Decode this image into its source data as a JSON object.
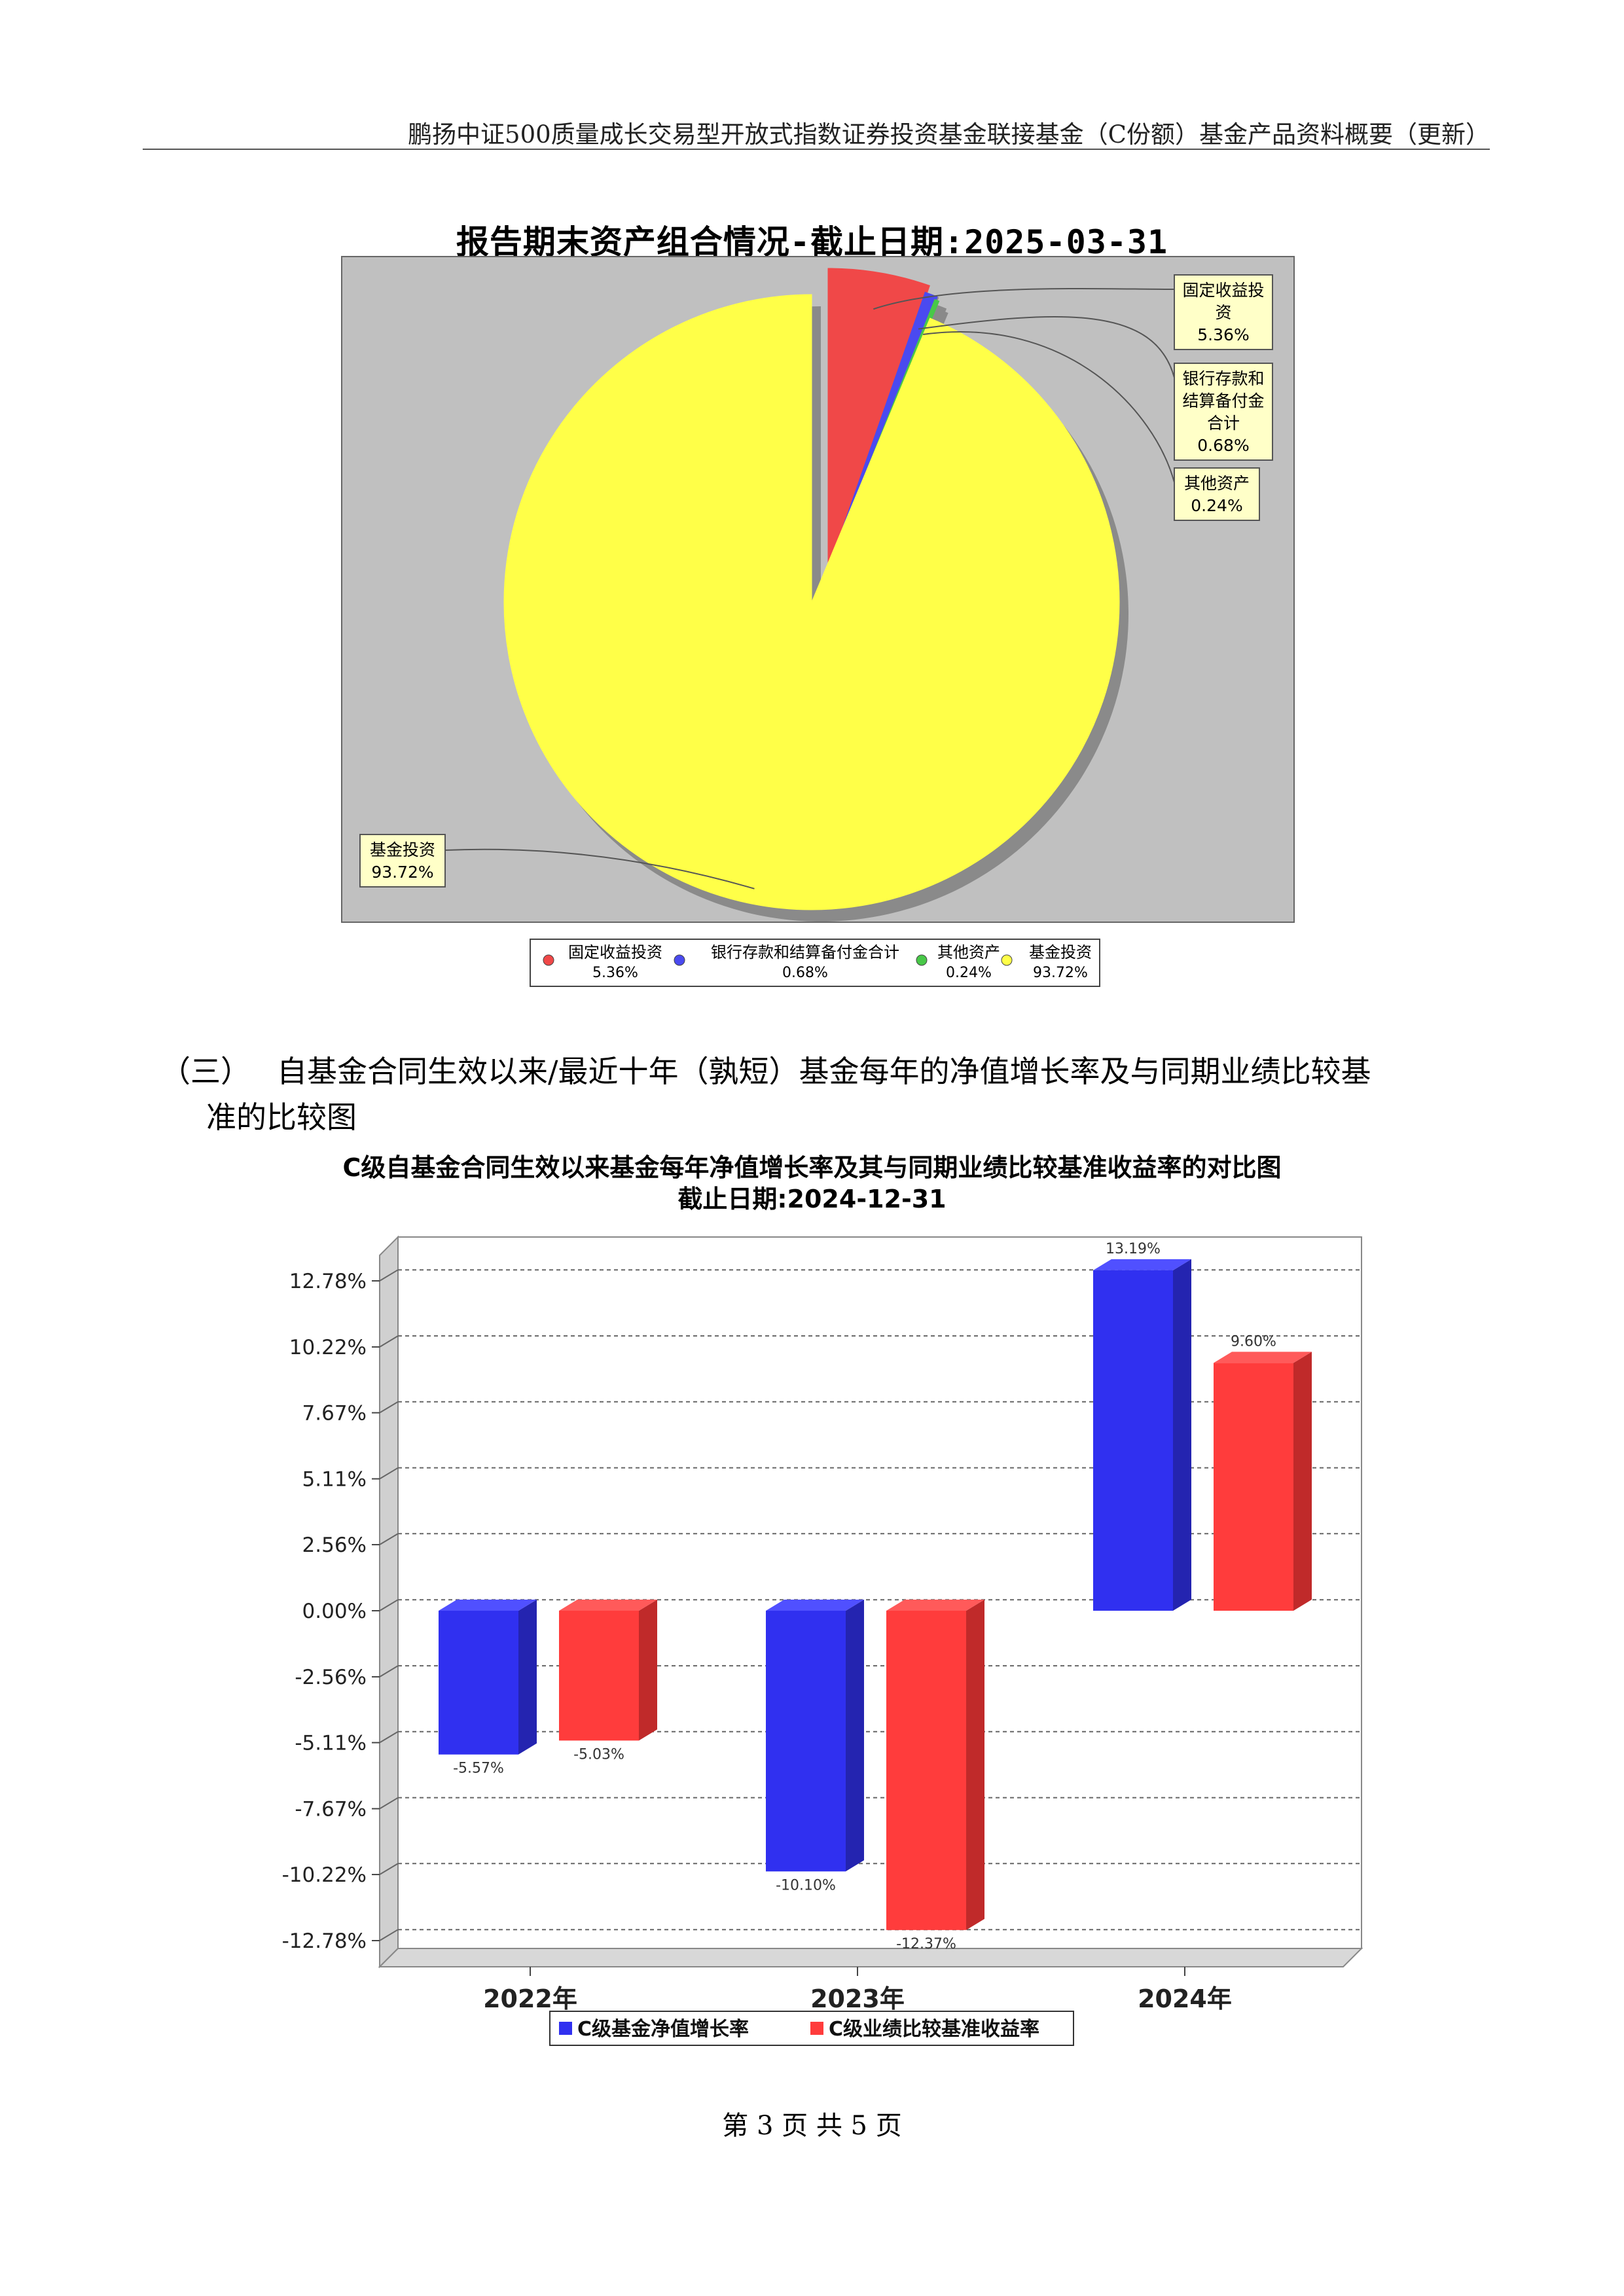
{
  "header": {
    "title": "鹏扬中证500质量成长交易型开放式指数证券投资基金联接基金（C份额）基金产品资料概要（更新）"
  },
  "pie": {
    "title": "报告期末资产组合情况-截止日期:2025-03-31",
    "colors": {
      "plot_bg": "#c0c0c0"
    },
    "chart_data": {
      "type": "pie",
      "title": "报告期末资产组合情况-截止日期:2025-03-31",
      "slices": [
        {
          "label": "固定收益投资",
          "label_lines": [
            "固定收益投",
            "资"
          ],
          "value": 5.36,
          "value_label": "5.36%",
          "legend_value": "5.36%",
          "color": "#f04848"
        },
        {
          "label": "银行存款和结算备付金合计",
          "label_lines": [
            "银行存款和",
            "结算备付金",
            "合计"
          ],
          "value": 0.68,
          "value_label": "0.68%",
          "legend_value": "0.68%",
          "color": "#4a4af0"
        },
        {
          "label": "其他资产",
          "label_lines": [
            "其他资产"
          ],
          "value": 0.24,
          "value_label": "0.24%",
          "legend_value": "0.24%",
          "color": "#48c848"
        },
        {
          "label": "基金投资",
          "label_lines": [
            "基金投资"
          ],
          "value": 93.72,
          "value_label": "93.72%",
          "legend_value": "93.72%",
          "color": "#ffff48"
        }
      ],
      "legend_placement": "bottom"
    }
  },
  "section": {
    "number": "（三）",
    "line1": "自基金合同生效以来/最近十年（孰短）基金每年的净值增长率及与同期业绩比较基",
    "line2": "准的比较图"
  },
  "bar": {
    "title_line1": "C级自基金合同生效以来基金每年净值增长率及其与同期业绩比较基准收益率的对比图",
    "title_line2": "截止日期:2024-12-31",
    "chart_data": {
      "type": "bar",
      "categories": [
        "2022年",
        "2023年",
        "2024年"
      ],
      "series": [
        {
          "name": "C级基金净值增长率",
          "values": [
            -5.57,
            -10.1,
            13.19
          ],
          "labels": [
            "-5.57%",
            "-10.10%",
            "13.19%"
          ],
          "color": "#3030f0"
        },
        {
          "name": "C级业绩比较基准收益率",
          "values": [
            -5.03,
            -12.37,
            9.6
          ],
          "labels": [
            "-5.03%",
            "-12.37%",
            "9.60%"
          ],
          "color": "#ff3c3c"
        }
      ],
      "yticks": [
        12.78,
        10.22,
        7.67,
        5.11,
        2.56,
        0.0,
        -2.56,
        -5.11,
        -7.67,
        -10.22,
        -12.78
      ],
      "ytick_labels": [
        "12.78%",
        "10.22%",
        "7.67%",
        "5.11%",
        "2.56%",
        "0.00%",
        "-2.56%",
        "-5.11%",
        "-7.67%",
        "-10.22%",
        "-12.78%"
      ],
      "ylim": [
        -12.78,
        12.78
      ],
      "grid": true,
      "legend_placement": "bottom"
    }
  },
  "footer": {
    "page": "第 3 页  共 5 页"
  }
}
